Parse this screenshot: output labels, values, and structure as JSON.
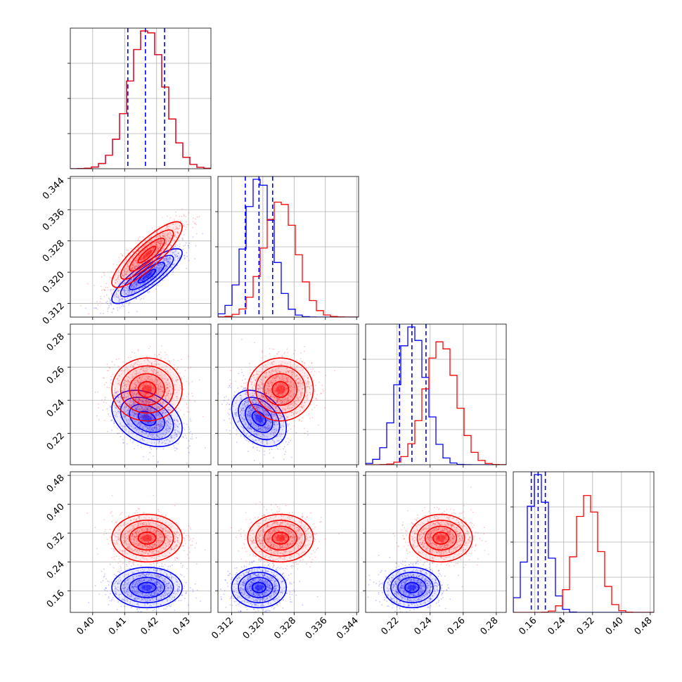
{
  "chart_data": {
    "type": "corner",
    "colors": {
      "model_a": "#0000ff",
      "model_b": "#ff0000",
      "grid": "#b0b0b0"
    },
    "grid": true,
    "parameters": [
      {
        "range": [
          0.393,
          0.437
        ],
        "ticks": [
          0.4,
          0.41,
          0.42,
          0.43
        ],
        "tick_labels": [
          "0.40",
          "0.41",
          "0.42",
          "0.43"
        ]
      },
      {
        "range": [
          0.3085,
          0.3445
        ],
        "ticks": [
          0.312,
          0.32,
          0.328,
          0.336,
          0.344
        ],
        "tick_labels": [
          "0.312",
          "0.320",
          "0.328",
          "0.336",
          "0.344"
        ]
      },
      {
        "range": [
          0.201,
          0.286
        ],
        "ticks": [
          0.22,
          0.24,
          0.26,
          0.28
        ],
        "tick_labels": [
          "0.22",
          "0.24",
          "0.26",
          "0.28"
        ]
      },
      {
        "range": [
          0.1,
          0.49
        ],
        "ticks": [
          0.16,
          0.24,
          0.32,
          0.4,
          0.48
        ],
        "tick_labels": [
          "0.16",
          "0.24",
          "0.32",
          "0.40",
          "0.48"
        ]
      }
    ],
    "series": [
      {
        "color": "#0000ff",
        "means": [
          0.417,
          0.319,
          0.229,
          0.169
        ],
        "sds": [
          0.0055,
          0.0035,
          0.0085,
          0.028
        ],
        "correlations": {
          "1_0": 0.85,
          "2_0": -0.35,
          "2_1": -0.35,
          "3_0": 0.0,
          "3_1": 0.0,
          "3_2": 0.0
        },
        "quantile_lines": [
          [
            0.411,
            0.4165,
            0.4225
          ],
          [
            0.3155,
            0.319,
            0.3225
          ],
          [
            0.2215,
            0.229,
            0.2375
          ],
          [
            0.15,
            0.169,
            0.189
          ]
        ]
      },
      {
        "color": "#ff0000",
        "means": [
          0.417,
          0.3245,
          0.2465,
          0.306
        ],
        "sds": [
          0.0055,
          0.0042,
          0.0095,
          0.033
        ],
        "correlations": {
          "1_0": 0.85,
          "2_0": 0.0,
          "2_1": 0.0,
          "3_0": 0.0,
          "3_1": 0.0,
          "3_2": 0.0
        },
        "quantile_lines": []
      }
    ]
  }
}
